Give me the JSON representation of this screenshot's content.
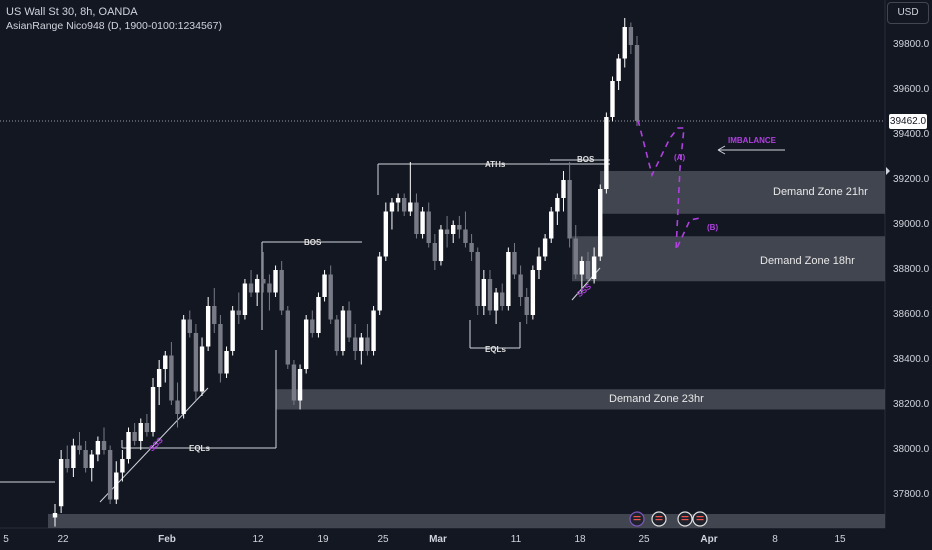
{
  "header": {
    "symbol_line": "US Wall St 30, 8h, OANDA",
    "indicator_line": "AsianRange Nico948 (D, 1900-0100:1234567)"
  },
  "currency_button": "USD",
  "current_price": "39462.0",
  "y_axis": {
    "ticks": [
      "39800.0",
      "39600.0",
      "39400.0",
      "39200.0",
      "39000.0",
      "38800.0",
      "38600.0",
      "38400.0",
      "38200.0",
      "38000.0",
      "37800.0"
    ]
  },
  "x_axis": {
    "ticks": [
      "5",
      "22",
      "Feb",
      "12",
      "19",
      "25",
      "Mar",
      "11",
      "18",
      "25",
      "Apr",
      "8",
      "15"
    ]
  },
  "zones": {
    "z21": "Demand Zone 21hr",
    "z18": "Demand Zone 18hr",
    "z23": "Demand Zone 23hr"
  },
  "annotations": {
    "bos_left": "BOS",
    "bos_right": "BOS",
    "aths": "ATHs",
    "eqls_mid": "EQLs",
    "eqls_left": "EQLs",
    "sss_left": "SSS",
    "sss_right": "SSS",
    "imbalance": "IMBALANCE",
    "a": "(A)",
    "b": "(B)"
  },
  "colors": {
    "background": "#131722",
    "bull": "#ffffff",
    "bear": "#787b86",
    "zone": "#4a4d57",
    "annotation": "#b040e0"
  },
  "chart_data": {
    "type": "candlestick",
    "symbol": "US Wall St 30",
    "timeframe": "8h",
    "last_price": 39462.0,
    "ylim": [
      37660,
      39950
    ],
    "zones": [
      {
        "label": "Demand Zone 21hr",
        "low": 39050,
        "high": 39240
      },
      {
        "label": "Demand Zone 18hr",
        "low": 38750,
        "high": 38950
      },
      {
        "label": "Demand Zone 23hr",
        "low": 38180,
        "high": 38270
      }
    ],
    "series": [
      {
        "o": 37700,
        "h": 37760,
        "l": 37660,
        "c": 37720
      },
      {
        "o": 37750,
        "h": 38000,
        "l": 37720,
        "c": 37960
      },
      {
        "o": 37960,
        "h": 38020,
        "l": 37900,
        "c": 37920
      },
      {
        "o": 37920,
        "h": 38050,
        "l": 37880,
        "c": 38020
      },
      {
        "o": 38020,
        "h": 38080,
        "l": 37980,
        "c": 38000
      },
      {
        "o": 38000,
        "h": 38040,
        "l": 37900,
        "c": 37920
      },
      {
        "o": 37920,
        "h": 38000,
        "l": 37860,
        "c": 37980
      },
      {
        "o": 37980,
        "h": 38060,
        "l": 37950,
        "c": 38040
      },
      {
        "o": 38040,
        "h": 38100,
        "l": 37980,
        "c": 38000
      },
      {
        "o": 38000,
        "h": 38020,
        "l": 37760,
        "c": 37780
      },
      {
        "o": 37780,
        "h": 37950,
        "l": 37760,
        "c": 37900
      },
      {
        "o": 37900,
        "h": 38000,
        "l": 37860,
        "c": 37960
      },
      {
        "o": 37960,
        "h": 38100,
        "l": 37940,
        "c": 38080
      },
      {
        "o": 38080,
        "h": 38120,
        "l": 38020,
        "c": 38040
      },
      {
        "o": 38040,
        "h": 38140,
        "l": 38000,
        "c": 38120
      },
      {
        "o": 38120,
        "h": 38160,
        "l": 38060,
        "c": 38080
      },
      {
        "o": 38080,
        "h": 38320,
        "l": 38060,
        "c": 38280
      },
      {
        "o": 38280,
        "h": 38400,
        "l": 38200,
        "c": 38360
      },
      {
        "o": 38360,
        "h": 38440,
        "l": 38300,
        "c": 38420
      },
      {
        "o": 38420,
        "h": 38480,
        "l": 38200,
        "c": 38220
      },
      {
        "o": 38220,
        "h": 38300,
        "l": 38100,
        "c": 38160
      },
      {
        "o": 38160,
        "h": 38600,
        "l": 38140,
        "c": 38580
      },
      {
        "o": 38580,
        "h": 38620,
        "l": 38500,
        "c": 38520
      },
      {
        "o": 38520,
        "h": 38560,
        "l": 38220,
        "c": 38260
      },
      {
        "o": 38260,
        "h": 38500,
        "l": 38240,
        "c": 38460
      },
      {
        "o": 38460,
        "h": 38680,
        "l": 38440,
        "c": 38640
      },
      {
        "o": 38640,
        "h": 38720,
        "l": 38520,
        "c": 38560
      },
      {
        "o": 38560,
        "h": 38600,
        "l": 38300,
        "c": 38340
      },
      {
        "o": 38340,
        "h": 38460,
        "l": 38320,
        "c": 38440
      },
      {
        "o": 38440,
        "h": 38640,
        "l": 38420,
        "c": 38620
      },
      {
        "o": 38620,
        "h": 38700,
        "l": 38560,
        "c": 38600
      },
      {
        "o": 38600,
        "h": 38760,
        "l": 38580,
        "c": 38740
      },
      {
        "o": 38740,
        "h": 38800,
        "l": 38680,
        "c": 38700
      },
      {
        "o": 38700,
        "h": 38780,
        "l": 38640,
        "c": 38760
      },
      {
        "o": 38760,
        "h": 38880,
        "l": 38700,
        "c": 38740
      },
      {
        "o": 38740,
        "h": 38780,
        "l": 38620,
        "c": 38700
      },
      {
        "o": 38700,
        "h": 38820,
        "l": 38680,
        "c": 38800
      },
      {
        "o": 38800,
        "h": 38840,
        "l": 38600,
        "c": 38620
      },
      {
        "o": 38620,
        "h": 38640,
        "l": 38360,
        "c": 38380
      },
      {
        "o": 38380,
        "h": 38400,
        "l": 38200,
        "c": 38220
      },
      {
        "o": 38220,
        "h": 38380,
        "l": 38180,
        "c": 38360
      },
      {
        "o": 38360,
        "h": 38600,
        "l": 38340,
        "c": 38580
      },
      {
        "o": 38580,
        "h": 38620,
        "l": 38500,
        "c": 38520
      },
      {
        "o": 38520,
        "h": 38700,
        "l": 38500,
        "c": 38680
      },
      {
        "o": 38680,
        "h": 38800,
        "l": 38660,
        "c": 38780
      },
      {
        "o": 38780,
        "h": 38820,
        "l": 38560,
        "c": 38580
      },
      {
        "o": 38580,
        "h": 38600,
        "l": 38420,
        "c": 38440
      },
      {
        "o": 38440,
        "h": 38640,
        "l": 38420,
        "c": 38620
      },
      {
        "o": 38620,
        "h": 38660,
        "l": 38480,
        "c": 38500
      },
      {
        "o": 38500,
        "h": 38560,
        "l": 38400,
        "c": 38440
      },
      {
        "o": 38440,
        "h": 38520,
        "l": 38380,
        "c": 38500
      },
      {
        "o": 38500,
        "h": 38560,
        "l": 38420,
        "c": 38440
      },
      {
        "o": 38440,
        "h": 38640,
        "l": 38420,
        "c": 38620
      },
      {
        "o": 38620,
        "h": 38880,
        "l": 38600,
        "c": 38860
      },
      {
        "o": 38860,
        "h": 39100,
        "l": 38840,
        "c": 39060
      },
      {
        "o": 39060,
        "h": 39120,
        "l": 38980,
        "c": 39100
      },
      {
        "o": 39100,
        "h": 39140,
        "l": 39060,
        "c": 39120
      },
      {
        "o": 39120,
        "h": 39140,
        "l": 39040,
        "c": 39060
      },
      {
        "o": 39060,
        "h": 39280,
        "l": 39040,
        "c": 39100
      },
      {
        "o": 39100,
        "h": 39140,
        "l": 38940,
        "c": 38960
      },
      {
        "o": 38960,
        "h": 39080,
        "l": 38940,
        "c": 39060
      },
      {
        "o": 39060,
        "h": 39100,
        "l": 38900,
        "c": 38920
      },
      {
        "o": 38920,
        "h": 38960,
        "l": 38800,
        "c": 38840
      },
      {
        "o": 38840,
        "h": 39000,
        "l": 38820,
        "c": 38980
      },
      {
        "o": 38980,
        "h": 39040,
        "l": 38900,
        "c": 38960
      },
      {
        "o": 38960,
        "h": 39020,
        "l": 38920,
        "c": 39000
      },
      {
        "o": 39000,
        "h": 39040,
        "l": 38940,
        "c": 38980
      },
      {
        "o": 38980,
        "h": 39060,
        "l": 38900,
        "c": 38920
      },
      {
        "o": 38920,
        "h": 38960,
        "l": 38840,
        "c": 38880
      },
      {
        "o": 38880,
        "h": 38900,
        "l": 38600,
        "c": 38640
      },
      {
        "o": 38640,
        "h": 38800,
        "l": 38600,
        "c": 38760
      },
      {
        "o": 38760,
        "h": 38800,
        "l": 38600,
        "c": 38620
      },
      {
        "o": 38620,
        "h": 38720,
        "l": 38560,
        "c": 38700
      },
      {
        "o": 38700,
        "h": 38740,
        "l": 38620,
        "c": 38640
      },
      {
        "o": 38640,
        "h": 38900,
        "l": 38620,
        "c": 38880
      },
      {
        "o": 38880,
        "h": 38920,
        "l": 38760,
        "c": 38780
      },
      {
        "o": 38780,
        "h": 38820,
        "l": 38640,
        "c": 38680
      },
      {
        "o": 38680,
        "h": 38720,
        "l": 38560,
        "c": 38600
      },
      {
        "o": 38600,
        "h": 38820,
        "l": 38580,
        "c": 38800
      },
      {
        "o": 38800,
        "h": 38900,
        "l": 38760,
        "c": 38860
      },
      {
        "o": 38860,
        "h": 38960,
        "l": 38840,
        "c": 38940
      },
      {
        "o": 38940,
        "h": 39080,
        "l": 38920,
        "c": 39060
      },
      {
        "o": 39060,
        "h": 39140,
        "l": 39000,
        "c": 39120
      },
      {
        "o": 39120,
        "h": 39240,
        "l": 39060,
        "c": 39200
      },
      {
        "o": 39200,
        "h": 39280,
        "l": 38900,
        "c": 38940
      },
      {
        "o": 38940,
        "h": 39000,
        "l": 38760,
        "c": 38780
      },
      {
        "o": 38780,
        "h": 38860,
        "l": 38700,
        "c": 38840
      },
      {
        "o": 38840,
        "h": 38880,
        "l": 38740,
        "c": 38760
      },
      {
        "o": 38760,
        "h": 38900,
        "l": 38740,
        "c": 38860
      },
      {
        "o": 38860,
        "h": 39180,
        "l": 38840,
        "c": 39160
      },
      {
        "o": 39160,
        "h": 39500,
        "l": 39140,
        "c": 39480
      },
      {
        "o": 39480,
        "h": 39660,
        "l": 39460,
        "c": 39640
      },
      {
        "o": 39640,
        "h": 39760,
        "l": 39600,
        "c": 39740
      },
      {
        "o": 39740,
        "h": 39920,
        "l": 39700,
        "c": 39880
      },
      {
        "o": 39880,
        "h": 39900,
        "l": 39760,
        "c": 39800
      },
      {
        "o": 39800,
        "h": 39840,
        "l": 39440,
        "c": 39462
      }
    ]
  }
}
